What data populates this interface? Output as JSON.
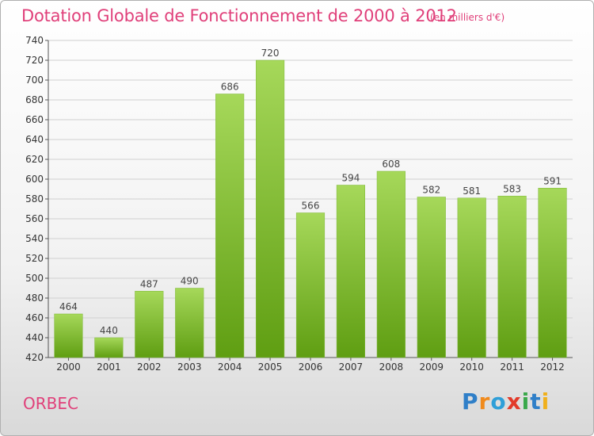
{
  "title": "Dotation Globale de Fonctionnement de 2000 à 2012",
  "unit": "(en milliers d'€)",
  "commune": "ORBEC",
  "logo": {
    "letters": [
      {
        "ch": "P",
        "color": "#2f7fc8"
      },
      {
        "ch": "r",
        "color": "#f08a1c"
      },
      {
        "ch": "o",
        "color": "#2f9fd8"
      },
      {
        "ch": "x",
        "color": "#e23a2a"
      },
      {
        "ch": "i",
        "color": "#3aa84a"
      },
      {
        "ch": "t",
        "color": "#2f7fc8"
      },
      {
        "ch": "i",
        "color": "#f0b01c"
      }
    ]
  },
  "colors": {
    "title": "#e0407a",
    "bar_top": "#a6d85a",
    "bar_bottom": "#5f9e12"
  },
  "chart_data": {
    "type": "bar",
    "categories": [
      "2000",
      "2001",
      "2002",
      "2003",
      "2004",
      "2005",
      "2006",
      "2007",
      "2008",
      "2009",
      "2010",
      "2011",
      "2012"
    ],
    "values": [
      464,
      440,
      487,
      490,
      686,
      720,
      566,
      594,
      608,
      582,
      581,
      583,
      591
    ],
    "ylim": [
      420,
      740
    ],
    "yticks": [
      420,
      440,
      460,
      480,
      500,
      520,
      540,
      560,
      580,
      600,
      620,
      640,
      660,
      680,
      700,
      720,
      740
    ],
    "grid": true,
    "title": "Dotation Globale de Fonctionnement de 2000 à 2012",
    "xlabel": "",
    "ylabel": ""
  }
}
